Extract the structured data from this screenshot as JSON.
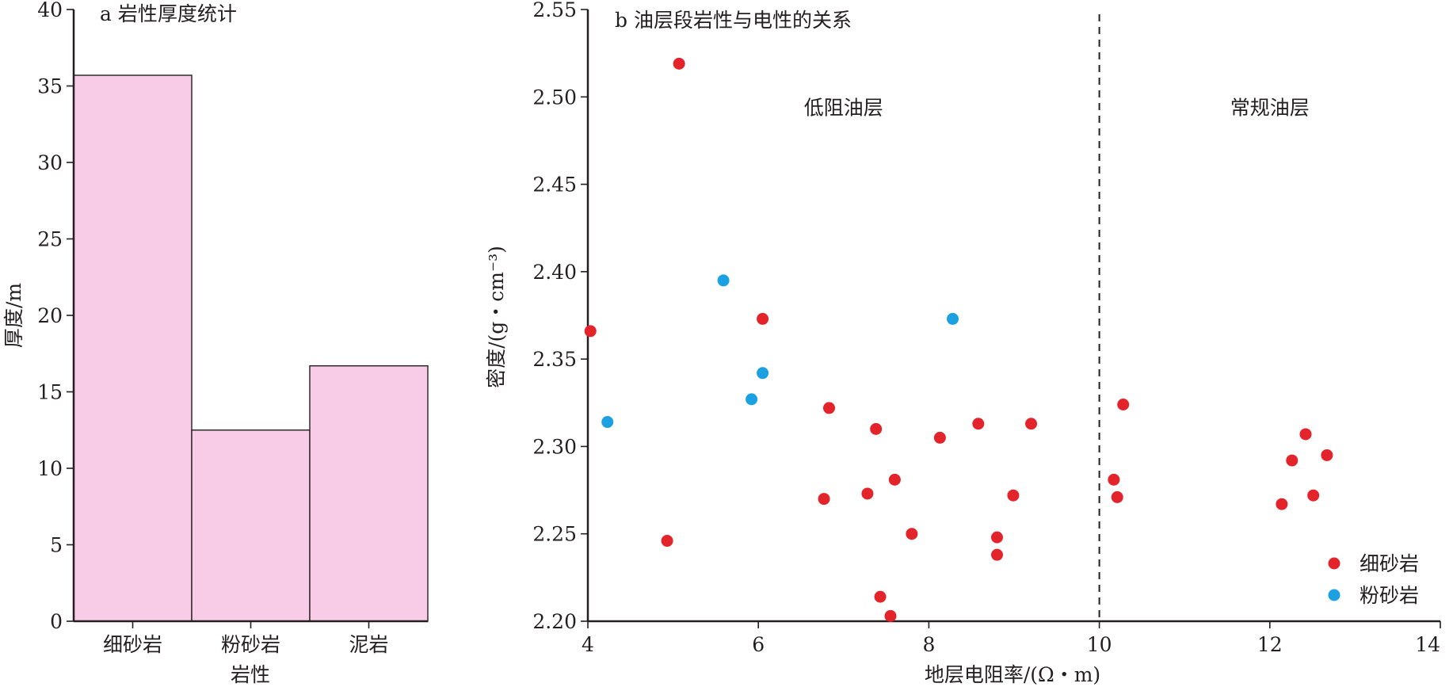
{
  "chart_data": [
    {
      "type": "bar",
      "title": "a 岩性厚度统计",
      "xlabel": "岩性",
      "ylabel": "厚度/m",
      "categories": [
        "细砂岩",
        "粉砂岩",
        "泥岩"
      ],
      "values": [
        35.7,
        12.5,
        16.7
      ],
      "ylim": [
        0,
        40
      ],
      "yticks": [
        0,
        5,
        10,
        15,
        20,
        25,
        30,
        35,
        40
      ],
      "bar_color": "#f8cbe6",
      "grid": false
    },
    {
      "type": "scatter",
      "title": "b 油层段岩性与电性的关系",
      "xlabel": "地层电阻率/(Ω・m)",
      "ylabel": "密度/(g・cm⁻³)",
      "xlim": [
        4,
        14
      ],
      "ylim": [
        2.2,
        2.55
      ],
      "xticks": [
        4,
        6,
        8,
        10,
        12,
        14
      ],
      "yticks": [
        "2.20",
        "2.25",
        "2.30",
        "2.35",
        "2.40",
        "2.45",
        "2.50",
        "2.55"
      ],
      "grid": false,
      "legend_position": "bottom-right",
      "divider_x": 10,
      "annotations": [
        {
          "text": "低阻油层",
          "x": 7.0,
          "y": 2.49
        },
        {
          "text": "常规油层",
          "x": 12.0,
          "y": 2.49
        }
      ],
      "series": [
        {
          "name": "细砂岩",
          "color": "#e3242b",
          "points": [
            [
              4.03,
              2.366
            ],
            [
              5.07,
              2.519
            ],
            [
              6.05,
              2.373
            ],
            [
              4.93,
              2.246
            ],
            [
              6.83,
              2.322
            ],
            [
              6.77,
              2.27
            ],
            [
              7.28,
              2.273
            ],
            [
              7.38,
              2.31
            ],
            [
              7.6,
              2.281
            ],
            [
              7.43,
              2.214
            ],
            [
              7.55,
              2.203
            ],
            [
              7.8,
              2.25
            ],
            [
              8.13,
              2.305
            ],
            [
              8.58,
              2.313
            ],
            [
              9.2,
              2.313
            ],
            [
              8.99,
              2.272
            ],
            [
              8.8,
              2.248
            ],
            [
              8.8,
              2.238
            ],
            [
              10.28,
              2.324
            ],
            [
              10.17,
              2.281
            ],
            [
              10.21,
              2.271
            ],
            [
              12.42,
              2.307
            ],
            [
              12.26,
              2.292
            ],
            [
              12.67,
              2.295
            ],
            [
              12.14,
              2.267
            ],
            [
              12.51,
              2.272
            ]
          ]
        },
        {
          "name": "粉砂岩",
          "color": "#1ba1e2",
          "points": [
            [
              4.23,
              2.314
            ],
            [
              5.59,
              2.395
            ],
            [
              6.05,
              2.342
            ],
            [
              5.92,
              2.327
            ],
            [
              8.28,
              2.373
            ]
          ]
        }
      ]
    }
  ]
}
